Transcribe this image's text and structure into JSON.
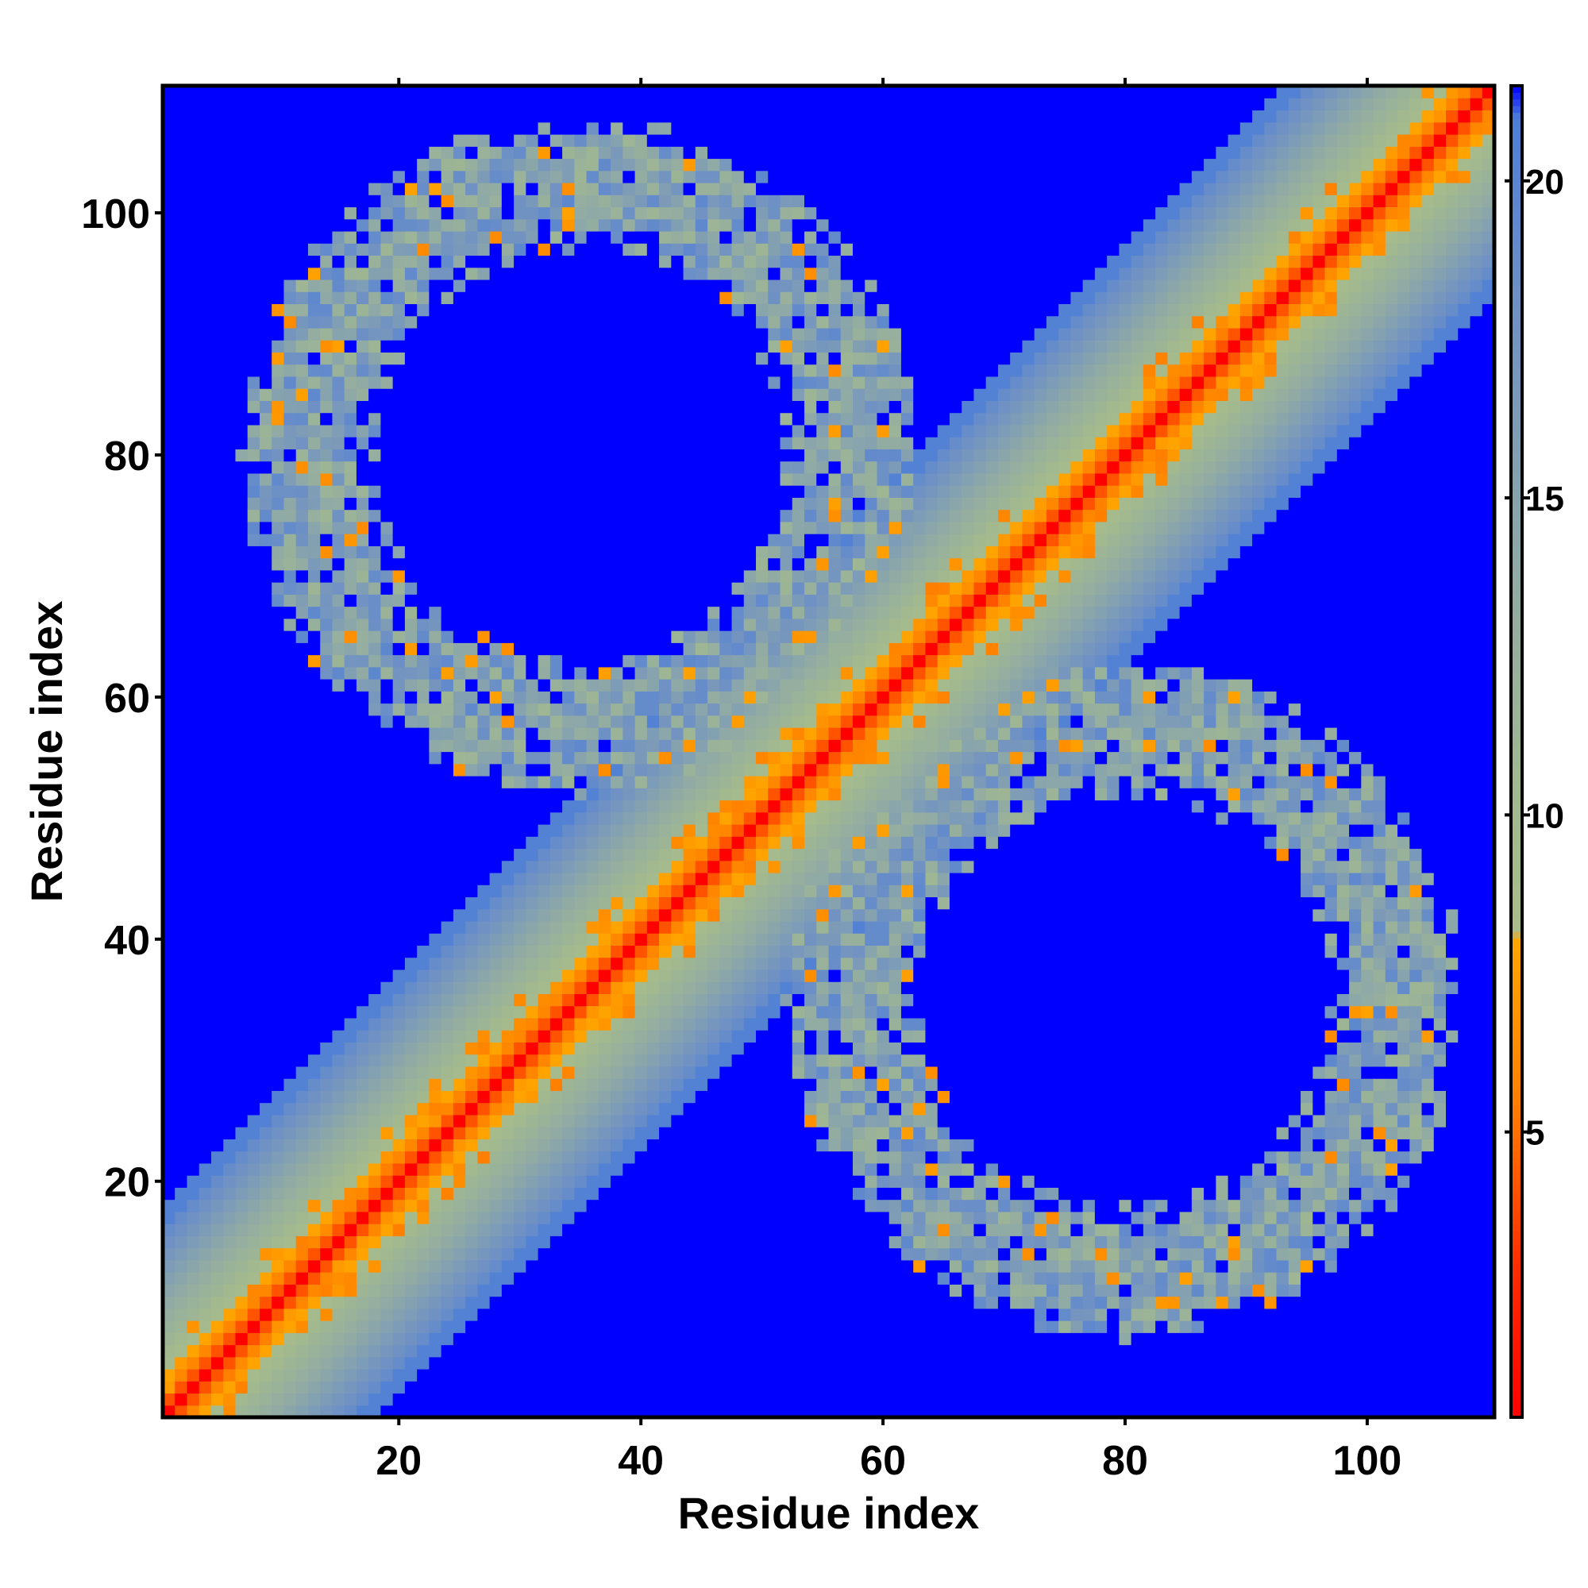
{
  "chart_data": {
    "type": "heatmap",
    "title": "",
    "xlabel": "Residue index",
    "ylabel": "Residue index",
    "xlim": [
      1,
      110
    ],
    "ylim": [
      1,
      110
    ],
    "x_ticks": [
      20,
      40,
      60,
      80,
      100
    ],
    "y_ticks": [
      20,
      40,
      60,
      80,
      100
    ],
    "n_residues": 110,
    "colorbar": {
      "range": [
        0.5,
        21.5
      ],
      "ticks": [
        5,
        10,
        15,
        20
      ],
      "colors": [
        {
          "value": 0.5,
          "color": "#ff0000"
        },
        {
          "value": 3.0,
          "color": "#ff3000"
        },
        {
          "value": 5.5,
          "color": "#ff7f00"
        },
        {
          "value": 8.0,
          "color": "#ffa500"
        },
        {
          "value": 8.2,
          "color": "#a9bc8a"
        },
        {
          "value": 10.0,
          "color": "#a3ba8e"
        },
        {
          "value": 14.0,
          "color": "#8fa9a6"
        },
        {
          "value": 18.0,
          "color": "#6f91c4"
        },
        {
          "value": 21.0,
          "color": "#4d7fd8"
        },
        {
          "value": 21.5,
          "color": "#0000ff"
        }
      ]
    },
    "background_value": 21.5,
    "structure": {
      "diagonal": "distance grows with |i-j|: ~0 on the diagonal, 8 at |i-j|=3, 21.5 (blue) beyond |i-j|≈17",
      "loops": [
        {
          "center": [
            35,
            80
          ],
          "inner_radius": 17,
          "outer_radius": 28
        },
        {
          "center": [
            80,
            35
          ],
          "inner_radius": 17,
          "outer_radius": 28
        }
      ]
    }
  }
}
